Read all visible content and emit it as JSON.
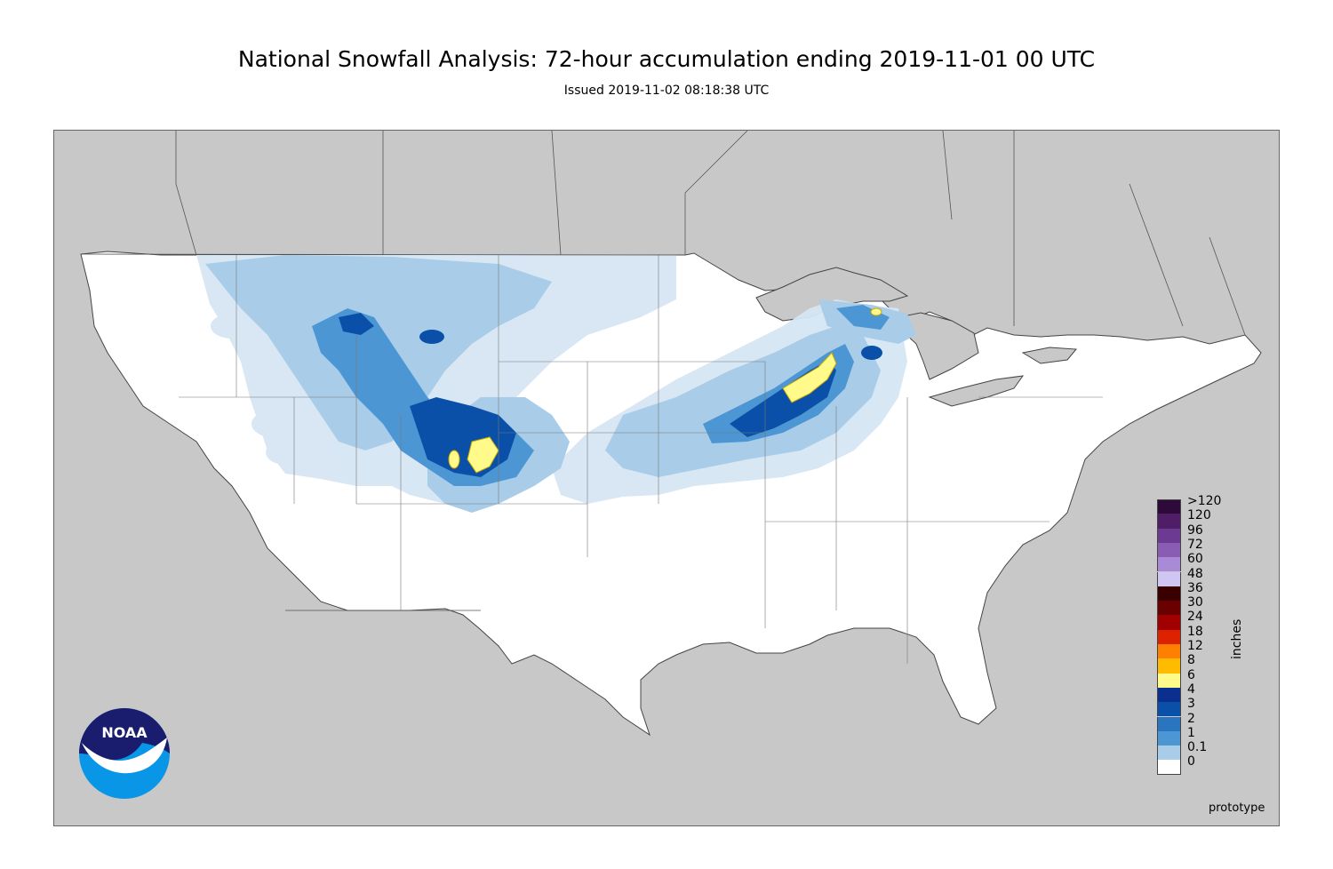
{
  "title": "National Snowfall Analysis: 72-hour accumulation ending 2019-11-01 00 UTC",
  "subtitle": "Issued 2019-11-02 08:18:38 UTC",
  "logo_text": "NOAA",
  "watermark": "prototype",
  "legend": {
    "units": "inches",
    "bins": [
      {
        "label": ">120",
        "color": "#2d0a3a"
      },
      {
        "label": "120",
        "color": "#4f1e66"
      },
      {
        "label": "96",
        "color": "#6c3a92"
      },
      {
        "label": "72",
        "color": "#8a5db5"
      },
      {
        "label": "60",
        "color": "#a88ad6"
      },
      {
        "label": "48",
        "color": "#cfc6f3"
      },
      {
        "label": "36",
        "color": "#3a0000"
      },
      {
        "label": "30",
        "color": "#6b0000"
      },
      {
        "label": "24",
        "color": "#a00000"
      },
      {
        "label": "18",
        "color": "#dd2200"
      },
      {
        "label": "12",
        "color": "#ff7f00"
      },
      {
        "label": "8",
        "color": "#ffbb00"
      },
      {
        "label": "6",
        "color": "#fffa8a"
      },
      {
        "label": "4",
        "color": "#0b2f8f"
      },
      {
        "label": "3",
        "color": "#0a50a8"
      },
      {
        "label": "2",
        "color": "#2a74c0"
      },
      {
        "label": "1",
        "color": "#4d96d4"
      },
      {
        "label": "0.1",
        "color": "#a9cde8"
      },
      {
        "label": "0",
        "color": "#ffffff"
      }
    ]
  },
  "colors": {
    "land_outside": "#c8c8c8",
    "conus": "#ffffff",
    "water": "#c8c8c8",
    "noaa_dark_blue": "#1a1d6e",
    "noaa_light_blue": "#0a96e6"
  }
}
